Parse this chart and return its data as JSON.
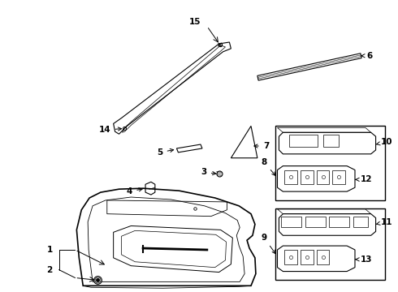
{
  "bg_color": "#ffffff",
  "fig_width": 4.9,
  "fig_height": 3.6,
  "dpi": 100,
  "lc": "#000000",
  "label_fontsize": 7.5
}
